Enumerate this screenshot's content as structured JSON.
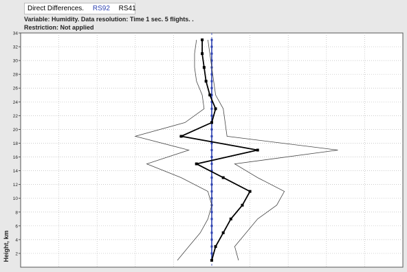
{
  "header": {
    "mode_label": "Direct Differences.",
    "series_a_label": "RS92",
    "series_b_label": "RS41",
    "variable_line": "Variable: Humidity. Data resolution: Time 1 sec. 5 flights. .",
    "restriction_line": "Restriction: Not applied"
  },
  "colors": {
    "series_a": "#2a3fb0",
    "series_b": "#000000",
    "envelope": "#444444",
    "grid": "#b8b8b8",
    "background": "#e8e8e8",
    "plot_bg": "#ffffff"
  },
  "chart_data": {
    "type": "line",
    "title": "Direct Differences.",
    "ylabel": "Height, km",
    "xlabel": "",
    "ylim": [
      0,
      34
    ],
    "xlim": [
      -5,
      5
    ],
    "y_ticks": [
      2,
      4,
      6,
      8,
      10,
      12,
      14,
      16,
      18,
      20,
      22,
      24,
      26,
      28,
      30,
      32,
      34
    ],
    "grid": true,
    "legend_placement": "top-left",
    "zero_line": {
      "name": "RS92",
      "x": 0
    },
    "series": [
      {
        "name": "RS41",
        "points": [
          [
            0.0,
            1
          ],
          [
            0.1,
            3
          ],
          [
            0.3,
            5
          ],
          [
            0.5,
            7
          ],
          [
            0.8,
            9
          ],
          [
            1.0,
            11
          ],
          [
            0.3,
            13
          ],
          [
            -0.4,
            15
          ],
          [
            1.2,
            17
          ],
          [
            -0.8,
            19
          ],
          [
            0.0,
            21
          ],
          [
            0.1,
            23
          ],
          [
            -0.05,
            25
          ],
          [
            -0.15,
            27
          ],
          [
            -0.2,
            29
          ],
          [
            -0.25,
            31
          ],
          [
            -0.25,
            33
          ]
        ]
      },
      {
        "name": "envelope-left",
        "points": [
          [
            -0.9,
            1
          ],
          [
            -0.6,
            3
          ],
          [
            -0.3,
            5
          ],
          [
            -0.1,
            7
          ],
          [
            0.0,
            9
          ],
          [
            -0.1,
            11
          ],
          [
            -0.8,
            13
          ],
          [
            -1.7,
            15
          ],
          [
            -0.6,
            17
          ],
          [
            -2.0,
            19
          ],
          [
            -0.7,
            21
          ],
          [
            -0.2,
            23
          ],
          [
            -0.25,
            25
          ],
          [
            -0.4,
            27
          ],
          [
            -0.45,
            29
          ],
          [
            -0.45,
            31
          ],
          [
            -0.4,
            33
          ]
        ]
      },
      {
        "name": "envelope-right",
        "points": [
          [
            0.7,
            1
          ],
          [
            0.6,
            3
          ],
          [
            0.9,
            5
          ],
          [
            1.2,
            7
          ],
          [
            1.7,
            9
          ],
          [
            1.9,
            11
          ],
          [
            1.2,
            13
          ],
          [
            0.6,
            15
          ],
          [
            3.3,
            17
          ],
          [
            0.4,
            19
          ],
          [
            0.35,
            21
          ],
          [
            0.3,
            23
          ],
          [
            0.1,
            25
          ],
          [
            0.05,
            27
          ],
          [
            0.0,
            29
          ],
          [
            -0.05,
            31
          ],
          [
            -0.1,
            33
          ]
        ]
      }
    ]
  }
}
